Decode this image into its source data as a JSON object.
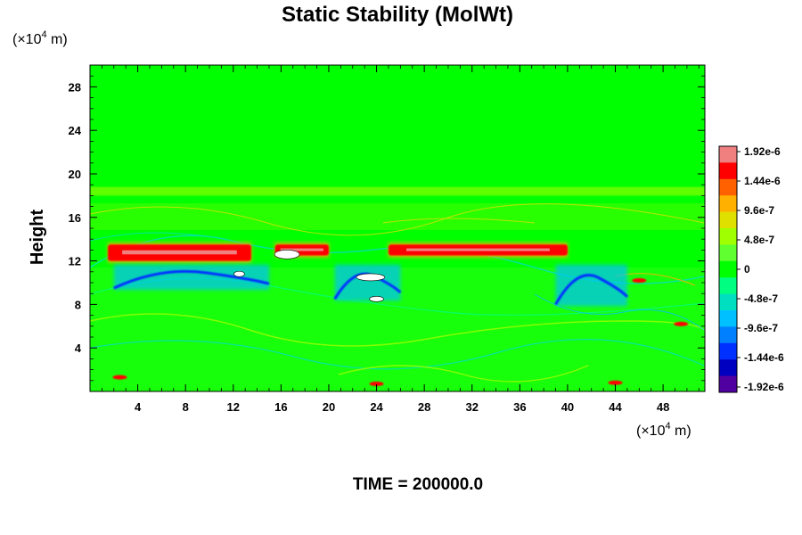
{
  "chart_data": {
    "type": "heatmap",
    "title": "Static Stability (MolWt)",
    "ylabel": "Height",
    "xlabel": "",
    "x_unit_prefix": "(×10",
    "x_unit_exp": "4",
    "x_unit_suffix": " m)",
    "y_unit_prefix": "(×10",
    "y_unit_exp": "4",
    "y_unit_suffix": " m)",
    "xlim": [
      0,
      51.5
    ],
    "ylim": [
      0,
      30
    ],
    "x_ticks": [
      4,
      8,
      12,
      16,
      20,
      24,
      28,
      32,
      36,
      40,
      44,
      48
    ],
    "y_ticks": [
      4,
      8,
      12,
      16,
      20,
      24,
      28
    ],
    "colorbar": {
      "range": [
        -1.92e-06,
        1.92e-06
      ],
      "labels": [
        "1.92e-6",
        "1.44e-6",
        "9.6e-7",
        "4.8e-7",
        "0",
        "-4.8e-7",
        "-9.6e-7",
        "-1.44e-6",
        "-1.92e-6"
      ],
      "colors": [
        "#f08080",
        "#ff0000",
        "#ff6000",
        "#ffb000",
        "#e0e000",
        "#a0ff00",
        "#60ff30",
        "#00ff00",
        "#00ff80",
        "#00e0c0",
        "#00c0ff",
        "#0080ff",
        "#0030ff",
        "#0000c0",
        "#5000a0"
      ]
    },
    "background_color": "#00ff00",
    "features": [
      {
        "kind": "positive_band",
        "x": [
          1.5,
          13.5
        ],
        "y": [
          12.0,
          13.5
        ],
        "level": "max"
      },
      {
        "kind": "positive_band",
        "x": [
          15.5,
          20.0
        ],
        "y": [
          12.5,
          13.5
        ],
        "level": "max"
      },
      {
        "kind": "positive_band",
        "x": [
          25.0,
          40.0
        ],
        "y": [
          12.5,
          13.5
        ],
        "level": "max"
      },
      {
        "kind": "negative_band",
        "x": [
          2.0,
          15.0
        ],
        "y": [
          9.5,
          11.5
        ],
        "level": "min"
      },
      {
        "kind": "negative_band",
        "x": [
          20.5,
          26.0
        ],
        "y": [
          8.5,
          11.5
        ],
        "level": "min"
      },
      {
        "kind": "negative_band",
        "x": [
          39.0,
          45.0
        ],
        "y": [
          8.0,
          11.5
        ],
        "level": "min"
      },
      {
        "kind": "upper_layer_boundary",
        "x": [
          0,
          51.5
        ],
        "y": [
          18.0,
          18.8
        ],
        "level": "weak"
      }
    ]
  },
  "footer": {
    "time_label": "TIME = 200000.0"
  }
}
